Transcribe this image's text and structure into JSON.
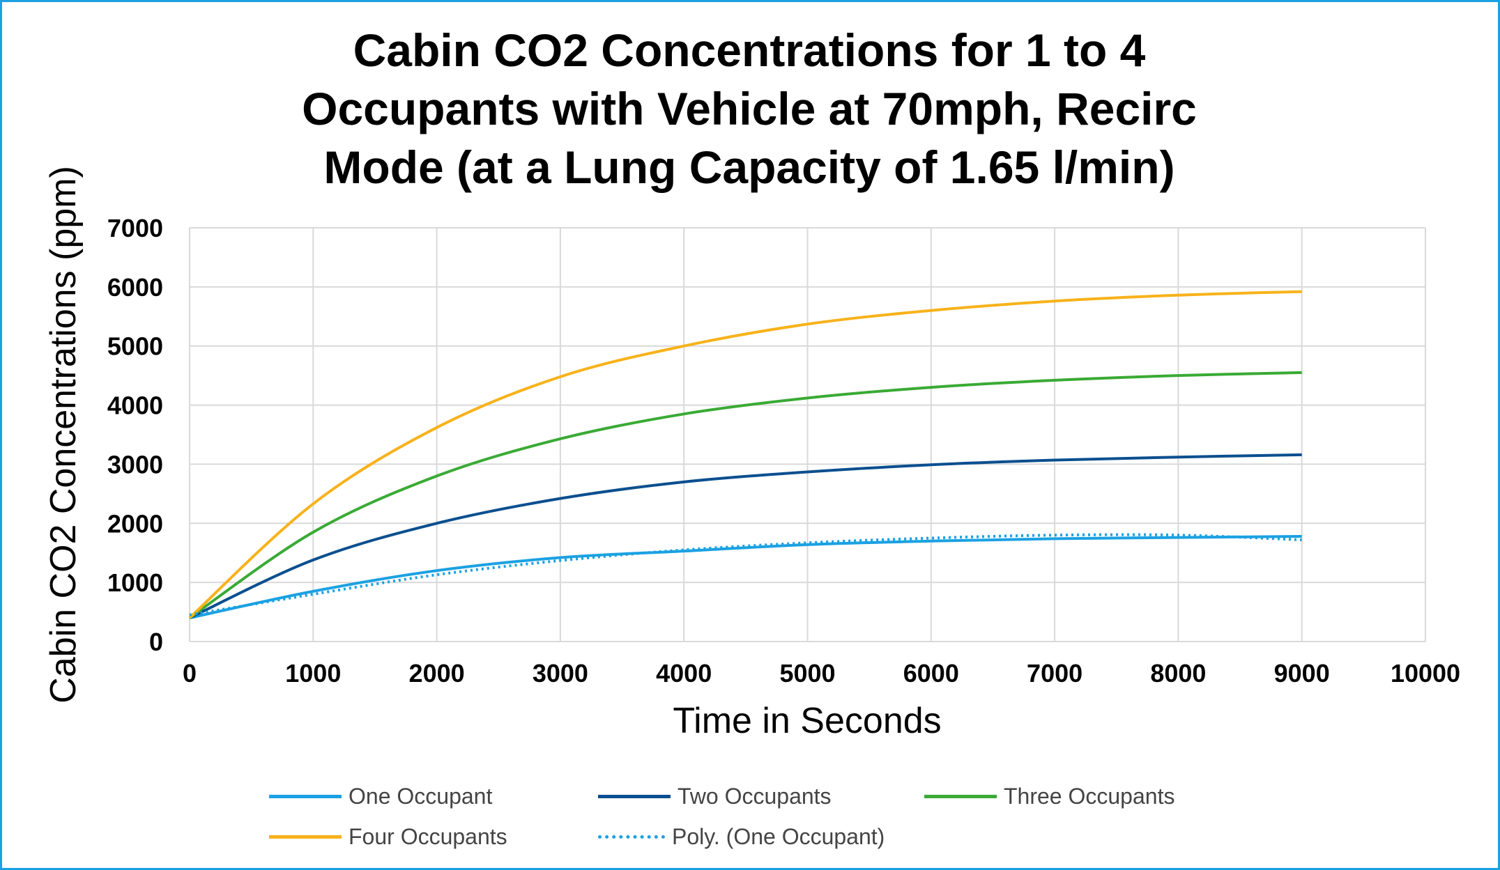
{
  "chart_data": {
    "type": "line",
    "title": "Cabin CO2 Concentrations for 1 to 4 Occupants with Vehicle at 70mph, Recirc Mode  (at a Lung Capacity of 1.65 l/min)",
    "title_lines": [
      "Cabin CO2 Concentrations for 1 to 4",
      "Occupants with Vehicle at 70mph, Recirc",
      "Mode  (at a Lung Capacity of 1.65 l/min)"
    ],
    "xlabel": "Time in Seconds",
    "ylabel": "Cabin CO2 Concentrations  (ppm)",
    "xlim": [
      0,
      10000
    ],
    "ylim": [
      0,
      7000
    ],
    "xticks": [
      0,
      1000,
      2000,
      3000,
      4000,
      5000,
      6000,
      7000,
      8000,
      9000,
      10000
    ],
    "yticks": [
      0,
      1000,
      2000,
      3000,
      4000,
      5000,
      6000,
      7000
    ],
    "grid": true,
    "legend_position": "bottom",
    "x": [
      0,
      1000,
      2000,
      3000,
      4000,
      5000,
      6000,
      7000,
      8000,
      9000
    ],
    "series": [
      {
        "name": "One Occupant",
        "color": "#1ba1e2",
        "style": "solid",
        "values": [
          400,
          850,
          1200,
          1420,
          1530,
          1640,
          1700,
          1740,
          1760,
          1780
        ]
      },
      {
        "name": "Two Occupants",
        "color": "#0a4f8f",
        "style": "solid",
        "values": [
          400,
          1380,
          2000,
          2420,
          2700,
          2870,
          2990,
          3070,
          3120,
          3160
        ]
      },
      {
        "name": "Three Occupants",
        "color": "#3aaa35",
        "style": "solid",
        "values": [
          400,
          1850,
          2800,
          3430,
          3850,
          4120,
          4300,
          4420,
          4500,
          4550
        ]
      },
      {
        "name": "Four Occupants",
        "color": "#f7b21b",
        "style": "solid",
        "values": [
          400,
          2330,
          3620,
          4480,
          5000,
          5370,
          5600,
          5760,
          5860,
          5920
        ]
      },
      {
        "name": "Poly. (One Occupant)",
        "color": "#1ba1e2",
        "style": "dotted",
        "values": [
          450,
          800,
          1130,
          1370,
          1550,
          1670,
          1750,
          1800,
          1800,
          1720
        ]
      }
    ]
  }
}
